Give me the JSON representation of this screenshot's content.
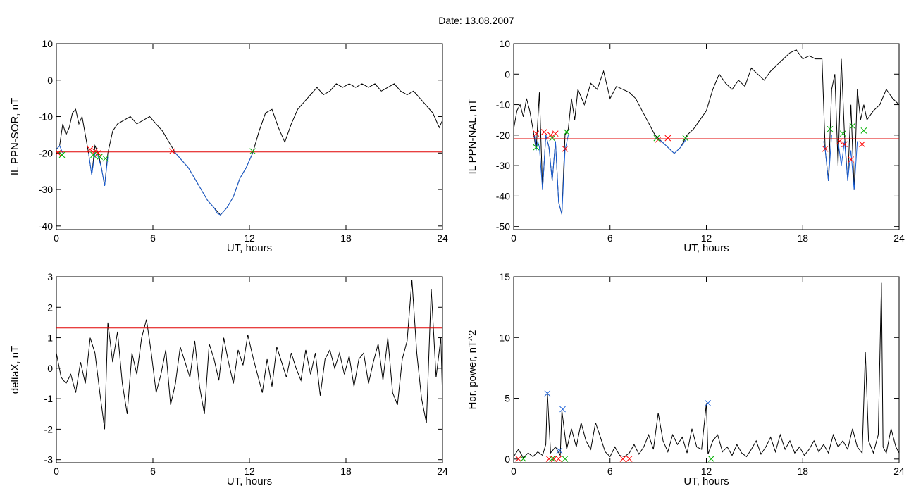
{
  "figure_title": "Date:  13.08.2007",
  "chart_data": [
    {
      "id": "p1",
      "type": "line",
      "xlabel": "UT, hours",
      "ylabel": "IL PPN-SOR, nT",
      "xlim": [
        0,
        24
      ],
      "ylim": [
        -41,
        10
      ],
      "xticks": [
        0,
        6,
        12,
        18,
        24
      ],
      "yticks": [
        10,
        0,
        -10,
        -20,
        -30,
        -40
      ],
      "threshold": -19.7,
      "series": [
        {
          "color": "#000000",
          "x": [
            0,
            0.2,
            0.4,
            0.6,
            0.8,
            1.0,
            1.2,
            1.4,
            1.6,
            1.8,
            2.0,
            2.2,
            2.4,
            2.6,
            2.8,
            3.0,
            3.2,
            3.5,
            3.8,
            4.2,
            4.6,
            5.0,
            5.4,
            5.8,
            6.2,
            6.6,
            7.0,
            7.4,
            7.8,
            8.2,
            8.6,
            9.0,
            9.4,
            9.8,
            10.2,
            10.6,
            11.0,
            11.4,
            11.8,
            12.2,
            12.6,
            13.0,
            13.4,
            13.8,
            14.2,
            14.6,
            15.0,
            15.4,
            15.8,
            16.2,
            16.6,
            17.0,
            17.4,
            17.8,
            18.2,
            18.6,
            19.0,
            19.4,
            19.8,
            20.2,
            20.6,
            21.0,
            21.4,
            21.8,
            22.2,
            22.6,
            23.0,
            23.4,
            23.8,
            24.0
          ],
          "y": [
            -19,
            -18,
            -12,
            -15,
            -13,
            -9,
            -8,
            -12,
            -10,
            -15,
            -20,
            -26,
            -18,
            -20,
            -24,
            -29,
            -20,
            -14,
            -12,
            -11,
            -10,
            -12,
            -11,
            -10,
            -12,
            -14,
            -17,
            -20,
            -22,
            -24,
            -27,
            -30,
            -33,
            -35,
            -37,
            -35,
            -32,
            -27,
            -24,
            -20,
            -14,
            -9,
            -8,
            -13,
            -17,
            -12,
            -8,
            -6,
            -4,
            -2,
            -4,
            -3,
            -1,
            -2,
            -1,
            -2,
            -1,
            -2,
            -1,
            -3,
            -2,
            -1,
            -3,
            -4,
            -3,
            -5,
            -7,
            -9,
            -13,
            -11
          ]
        },
        {
          "color": "#1a5fd6",
          "x": [
            0.0,
            0.2,
            0.4
          ],
          "y": [
            -19,
            -18,
            -20
          ]
        },
        {
          "color": "#1a5fd6",
          "x": [
            2.0,
            2.2,
            2.4,
            2.6,
            2.8,
            3.0,
            3.2
          ],
          "y": [
            -20,
            -26,
            -20,
            -21,
            -24,
            -29,
            -21
          ]
        },
        {
          "color": "#1a5fd6",
          "x": [
            7.2,
            7.4,
            7.8,
            8.2,
            8.6,
            9.0,
            9.4,
            9.8,
            10.0,
            10.2,
            10.6,
            11.0,
            11.4,
            11.8,
            12.2
          ],
          "y": [
            -19.5,
            -20,
            -22,
            -24,
            -27,
            -30,
            -33,
            -35,
            -36.5,
            -37,
            -35,
            -32,
            -27,
            -24,
            -20
          ]
        }
      ],
      "markers": [
        {
          "color": "#ff0000",
          "points": [
            [
              0.1,
              -20
            ],
            [
              2.1,
              -19
            ],
            [
              2.4,
              -19.5
            ],
            [
              2.6,
              -20
            ],
            [
              7.2,
              -19.5
            ]
          ]
        },
        {
          "color": "#00b000",
          "points": [
            [
              0.35,
              -20.5
            ],
            [
              2.3,
              -20.5
            ],
            [
              2.7,
              -21
            ],
            [
              3.05,
              -21.5
            ],
            [
              12.2,
              -19.5
            ]
          ]
        }
      ]
    },
    {
      "id": "p2",
      "type": "line",
      "xlabel": "UT, hours",
      "ylabel": "IL PPN-NAL, nT",
      "xlim": [
        0,
        24
      ],
      "ylim": [
        -51,
        10
      ],
      "xticks": [
        0,
        6,
        12,
        18,
        24
      ],
      "yticks": [
        10,
        0,
        -10,
        -20,
        -30,
        -40,
        -50
      ],
      "threshold": -21.2,
      "series": [
        {
          "color": "#000000",
          "x": [
            0,
            0.2,
            0.4,
            0.6,
            0.8,
            1.0,
            1.2,
            1.4,
            1.6,
            1.8,
            2.0,
            2.2,
            2.4,
            2.6,
            2.8,
            3.0,
            3.2,
            3.4,
            3.6,
            3.8,
            4.0,
            4.4,
            4.8,
            5.2,
            5.6,
            6.0,
            6.4,
            6.8,
            7.2,
            7.6,
            8.0,
            8.4,
            8.8,
            9.2,
            9.6,
            10.0,
            10.4,
            10.8,
            11.2,
            11.6,
            12.0,
            12.4,
            12.8,
            13.2,
            13.6,
            14.0,
            14.4,
            14.8,
            15.2,
            15.6,
            16.0,
            16.4,
            16.8,
            17.2,
            17.6,
            18.0,
            18.4,
            18.8,
            19.2,
            19.4,
            19.6,
            19.8,
            20.0,
            20.2,
            20.4,
            20.6,
            20.8,
            21.0,
            21.2,
            21.4,
            21.6,
            21.8,
            22.0,
            22.4,
            22.8,
            23.2,
            23.6,
            24.0
          ],
          "y": [
            -18,
            -12,
            -10,
            -14,
            -8,
            -12,
            -18,
            -25,
            -6,
            -38,
            -20,
            -24,
            -35,
            -22,
            -42,
            -46,
            -20,
            -18,
            -8,
            -15,
            -5,
            -10,
            -3,
            -5,
            1,
            -8,
            -4,
            -5,
            -6,
            -8,
            -12,
            -16,
            -20,
            -22,
            -24,
            -26,
            -24,
            -20,
            -18,
            -15,
            -12,
            -5,
            0,
            -3,
            -5,
            -2,
            -4,
            2,
            0,
            -2,
            1,
            3,
            5,
            7,
            8,
            5,
            6,
            5,
            5,
            -25,
            -35,
            -5,
            0,
            -30,
            5,
            -20,
            -35,
            -10,
            -38,
            -5,
            -15,
            -10,
            -15,
            -12,
            -10,
            -5,
            -8,
            -10
          ]
        },
        {
          "color": "#1a5fd6",
          "x": [
            1.3,
            1.4,
            1.5,
            1.6,
            1.8,
            2.0,
            2.2,
            2.4,
            2.6,
            2.8,
            3.0,
            3.2,
            3.4
          ],
          "y": [
            -20,
            -25,
            -22,
            -24,
            -38,
            -20,
            -24,
            -35,
            -22,
            -42,
            -46,
            -25,
            -20
          ]
        },
        {
          "color": "#1a5fd6",
          "x": [
            8.8,
            9.2,
            9.6,
            10.0,
            10.4,
            10.8
          ],
          "y": [
            -21,
            -22,
            -24,
            -26,
            -24,
            -21
          ]
        },
        {
          "color": "#1a5fd6",
          "x": [
            19.3,
            19.4,
            19.6,
            19.8
          ],
          "y": [
            -22,
            -25,
            -35,
            -20
          ]
        },
        {
          "color": "#1a5fd6",
          "x": [
            20.2,
            20.4,
            20.6,
            20.8,
            21.0,
            21.2,
            21.4
          ],
          "y": [
            -22,
            -30,
            -22,
            -35,
            -25,
            -38,
            -22
          ]
        }
      ],
      "markers": [
        {
          "color": "#ff0000",
          "points": [
            [
              1.4,
              -19.5
            ],
            [
              1.9,
              -19
            ],
            [
              2.3,
              -20
            ],
            [
              2.6,
              -19.5
            ],
            [
              3.2,
              -24.5
            ],
            [
              9.0,
              -21.5
            ],
            [
              9.6,
              -21
            ],
            [
              19.4,
              -24.5
            ],
            [
              20.3,
              -22
            ],
            [
              20.6,
              -23
            ],
            [
              21.0,
              -28
            ],
            [
              21.7,
              -23
            ]
          ]
        },
        {
          "color": "#00b000",
          "points": [
            [
              1.4,
              -24
            ],
            [
              2.4,
              -21
            ],
            [
              3.3,
              -19
            ],
            [
              8.9,
              -21
            ],
            [
              10.7,
              -21
            ],
            [
              19.7,
              -18
            ],
            [
              20.5,
              -19.5
            ],
            [
              21.1,
              -17
            ],
            [
              21.8,
              -18.5
            ]
          ]
        }
      ]
    },
    {
      "id": "p3",
      "type": "line",
      "xlabel": "UT, hours",
      "ylabel": "deltaX, nT",
      "xlim": [
        0,
        24
      ],
      "ylim": [
        -3.1,
        3
      ],
      "xticks": [
        0,
        6,
        12,
        18,
        24
      ],
      "yticks": [
        3,
        2,
        1,
        0,
        -1,
        -2,
        -3
      ],
      "threshold": 1.32,
      "series": [
        {
          "color": "#000000",
          "x": [
            0,
            0.3,
            0.6,
            0.9,
            1.2,
            1.5,
            1.8,
            2.1,
            2.4,
            2.7,
            3.0,
            3.2,
            3.5,
            3.8,
            4.1,
            4.4,
            4.7,
            5.0,
            5.3,
            5.6,
            5.9,
            6.2,
            6.5,
            6.8,
            7.1,
            7.4,
            7.7,
            8.0,
            8.3,
            8.6,
            8.9,
            9.2,
            9.5,
            9.8,
            10.1,
            10.4,
            10.7,
            11.0,
            11.3,
            11.6,
            11.9,
            12.2,
            12.5,
            12.8,
            13.1,
            13.4,
            13.7,
            14.0,
            14.3,
            14.6,
            14.9,
            15.2,
            15.5,
            15.8,
            16.1,
            16.4,
            16.7,
            17.0,
            17.3,
            17.6,
            17.9,
            18.2,
            18.5,
            18.8,
            19.1,
            19.4,
            19.7,
            20.0,
            20.3,
            20.6,
            20.9,
            21.2,
            21.5,
            21.8,
            22.1,
            22.4,
            22.7,
            23.0,
            23.3,
            23.6,
            23.9,
            24.0
          ],
          "y": [
            0.5,
            -0.3,
            -0.5,
            -0.2,
            -0.8,
            0.2,
            -0.5,
            1.0,
            0.5,
            -0.8,
            -2.0,
            1.5,
            0.2,
            1.2,
            -0.5,
            -1.5,
            0.5,
            -0.2,
            1.0,
            1.6,
            0.5,
            -0.8,
            -0.2,
            0.6,
            -1.2,
            -0.5,
            0.7,
            0.2,
            -0.3,
            0.9,
            -0.6,
            -1.5,
            0.8,
            0.3,
            -0.4,
            1.0,
            0.2,
            -0.5,
            0.6,
            0.1,
            1.1,
            0.4,
            -0.2,
            -0.8,
            0.3,
            -0.6,
            0.7,
            0.2,
            -0.3,
            0.5,
            0.0,
            -0.4,
            0.6,
            -0.2,
            0.5,
            -0.9,
            0.3,
            0.6,
            0.0,
            0.5,
            -0.2,
            0.4,
            -0.6,
            0.3,
            0.5,
            -0.5,
            0.2,
            0.8,
            -0.4,
            1.0,
            -0.8,
            -1.2,
            0.3,
            0.9,
            2.9,
            0.5,
            -1.0,
            -1.8,
            2.6,
            -0.3,
            1.0,
            -1.0
          ]
        }
      ],
      "markers": []
    },
    {
      "id": "p4",
      "type": "line",
      "xlabel": "UT, hours",
      "ylabel": "Hor. power, nT^2",
      "xlim": [
        0,
        24
      ],
      "ylim": [
        -0.3,
        15
      ],
      "xticks": [
        0,
        6,
        12,
        18,
        24
      ],
      "yticks": [
        15,
        10,
        5,
        0
      ],
      "threshold": null,
      "series": [
        {
          "color": "#000000",
          "x": [
            0,
            0.3,
            0.6,
            0.9,
            1.2,
            1.5,
            1.8,
            2.0,
            2.1,
            2.3,
            2.6,
            2.9,
            3.0,
            3.3,
            3.6,
            3.9,
            4.2,
            4.5,
            4.8,
            5.1,
            5.4,
            5.7,
            6.0,
            6.3,
            6.6,
            6.9,
            7.2,
            7.5,
            7.8,
            8.1,
            8.4,
            8.7,
            9.0,
            9.3,
            9.6,
            9.9,
            10.2,
            10.5,
            10.8,
            11.1,
            11.4,
            11.7,
            12.0,
            12.1,
            12.4,
            12.7,
            13.0,
            13.3,
            13.6,
            13.9,
            14.2,
            14.5,
            14.8,
            15.1,
            15.4,
            15.7,
            16.0,
            16.3,
            16.6,
            16.9,
            17.2,
            17.5,
            17.8,
            18.1,
            18.4,
            18.7,
            19.0,
            19.3,
            19.6,
            19.9,
            20.2,
            20.5,
            20.8,
            21.1,
            21.4,
            21.7,
            21.9,
            22.1,
            22.4,
            22.7,
            22.9,
            23.0,
            23.2,
            23.5,
            23.8,
            24.0
          ],
          "y": [
            0.2,
            0.8,
            0.1,
            0.5,
            0.2,
            0.6,
            0.3,
            1.2,
            5.4,
            0.5,
            1.0,
            0.3,
            4.0,
            0.8,
            2.5,
            1.0,
            3.0,
            1.5,
            0.8,
            3.0,
            1.8,
            0.6,
            0.2,
            1.0,
            0.3,
            0.2,
            0.5,
            1.2,
            0.4,
            1.0,
            2.0,
            0.8,
            3.8,
            1.5,
            0.6,
            2.0,
            1.2,
            1.8,
            0.5,
            2.5,
            1.0,
            0.8,
            4.6,
            0.4,
            1.5,
            2.0,
            0.6,
            1.0,
            0.3,
            1.2,
            0.5,
            0.2,
            0.8,
            1.5,
            0.4,
            1.0,
            1.8,
            0.6,
            2.0,
            0.8,
            1.5,
            0.5,
            1.0,
            0.3,
            0.8,
            1.5,
            0.6,
            1.2,
            0.5,
            2.0,
            1.0,
            1.5,
            0.8,
            2.5,
            1.0,
            0.5,
            8.8,
            1.5,
            0.5,
            2.0,
            14.5,
            1.0,
            0.5,
            2.5,
            1.0,
            0.5
          ]
        }
      ],
      "markers": [
        {
          "color": "#1a5fd6",
          "points": [
            [
              2.1,
              5.4
            ],
            [
              2.85,
              0.7
            ],
            [
              3.05,
              4.1
            ],
            [
              12.1,
              4.6
            ]
          ]
        },
        {
          "color": "#ff0000",
          "points": [
            [
              0.3,
              0.02
            ],
            [
              2.2,
              0.02
            ],
            [
              2.5,
              0.02
            ],
            [
              2.8,
              0.02
            ],
            [
              6.8,
              0.02
            ],
            [
              7.2,
              0.02
            ]
          ]
        },
        {
          "color": "#00b000",
          "points": [
            [
              0.6,
              0.02
            ],
            [
              2.4,
              0.02
            ],
            [
              3.2,
              0.02
            ],
            [
              12.3,
              0.02
            ]
          ]
        }
      ]
    }
  ]
}
